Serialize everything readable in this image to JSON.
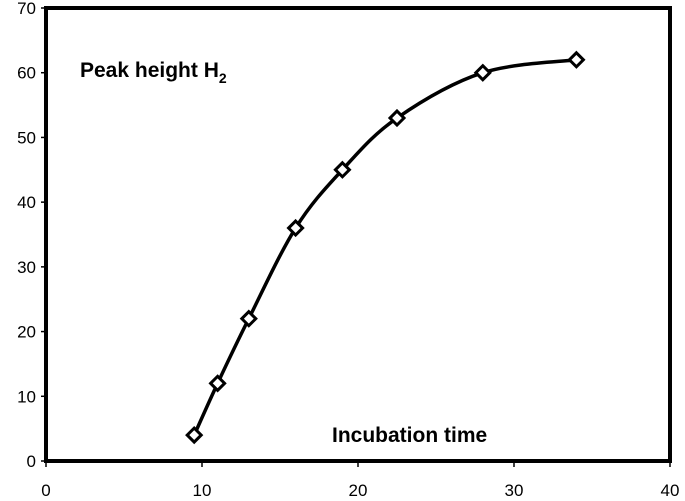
{
  "chart_data": {
    "type": "line",
    "series": [
      {
        "x": [
          9.5,
          11,
          13,
          16,
          19,
          22.5,
          28,
          34
        ],
        "y": [
          4,
          12,
          22,
          36,
          45,
          53,
          60,
          62
        ],
        "marker": "diamond-open",
        "line": "smooth",
        "color": "#000000"
      }
    ],
    "annotations": {
      "series_label": "Peak height H",
      "series_label_subscript": "2",
      "xlabel_inside": "Incubation time"
    },
    "xlim": [
      0,
      40
    ],
    "ylim": [
      0,
      70
    ],
    "xticks": [
      0,
      10,
      20,
      30,
      40
    ],
    "yticks": [
      0,
      10,
      20,
      30,
      40,
      50,
      60,
      70
    ],
    "xtick_labels": [
      "0",
      "10",
      "20",
      "30",
      "40"
    ],
    "ytick_labels": [
      "0",
      "10",
      "20",
      "30",
      "40",
      "50",
      "60",
      "70"
    ],
    "grid": false,
    "legend": "none"
  }
}
